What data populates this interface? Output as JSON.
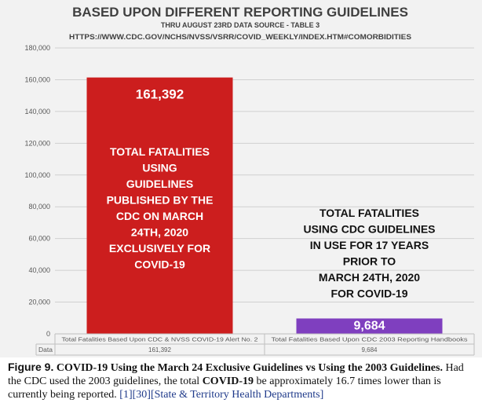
{
  "chart_data": {
    "type": "bar",
    "title": "BASED UPON DIFFERENT REPORTING GUIDELINES",
    "subtitle_line1": "THRU AUGUST 23RD DATA SOURCE - TABLE 3",
    "subtitle_line2": "HTTPS://WWW.CDC.GOV/NCHS/NVSS/VSRR/COVID_WEEKLY/INDEX.HTM#COMORBIDITIES",
    "categories": [
      "Total Fatalities Based Upon CDC & NVSS COVID-19 Alert No. 2",
      "Total Fatalities Based Upon CDC 2003 Reporting Handbooks"
    ],
    "values": [
      161392,
      9684
    ],
    "value_labels": [
      "161,392",
      "9,684"
    ],
    "ylim": [
      0,
      180000
    ],
    "yticks": [
      0,
      20000,
      40000,
      60000,
      80000,
      100000,
      120000,
      140000,
      160000,
      180000
    ],
    "ytick_labels": [
      "0",
      "20,000",
      "40,000",
      "60,000",
      "80,000",
      "100,000",
      "120,000",
      "140,000",
      "160,000",
      "180,000"
    ],
    "grid": true,
    "colors": [
      "#cc1e1e",
      "#7f3fbf"
    ],
    "annotations": [
      [
        "TOTAL FATALITIES",
        "USING",
        "GUIDELINES",
        "PUBLISHED BY THE",
        "CDC ON MARCH",
        "24TH, 2020",
        "EXCLUSIVELY FOR",
        "COVID-19"
      ],
      [
        "TOTAL FATALITIES",
        "USING CDC GUIDELINES",
        "IN USE FOR 17 YEARS",
        "PRIOR TO",
        "MARCH 24TH, 2020",
        "FOR COVID-19"
      ]
    ],
    "table": {
      "row_label": "Data",
      "cells": [
        "161,392",
        "9,684"
      ]
    }
  },
  "caption": {
    "label": "Figure 9.",
    "title": "COVID-19 Using the March 24 Exclusive Guidelines vs Using the 2003 Guidelines.",
    "text1": " Had the CDC used the 2003 guidelines, the total ",
    "bold1": "COVID-19",
    "text2": " be approximately 16.7 times lower than is currently being reported. ",
    "ref1": "[1]",
    "ref2": "[30]",
    "ref3": "[State & Territory Health Departments]"
  }
}
